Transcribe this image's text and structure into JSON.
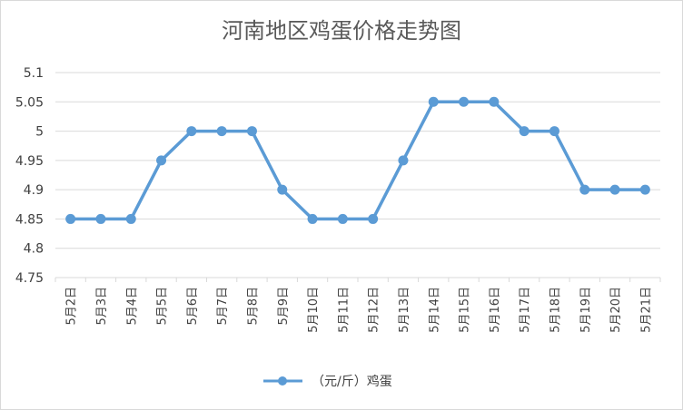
{
  "chart_data": {
    "type": "line",
    "title": "河南地区鸡蛋价格走势图",
    "xlabel": "",
    "ylabel": "",
    "categories": [
      "5月2日",
      "5月3日",
      "5月4日",
      "5月5日",
      "5月6日",
      "5月7日",
      "5月8日",
      "5月9日",
      "5月10日",
      "5月11日",
      "5月12日",
      "5月13日",
      "5月14日",
      "5月15日",
      "5月16日",
      "5月17日",
      "5月18日",
      "5月19日",
      "5月20日",
      "5月21日"
    ],
    "series": [
      {
        "name": "（元/斤）鸡蛋",
        "color": "#5b9bd5",
        "values": [
          4.85,
          4.85,
          4.85,
          4.95,
          5,
          5,
          5,
          4.9,
          4.85,
          4.85,
          4.85,
          4.95,
          5.05,
          5.05,
          5.05,
          5,
          5,
          4.9,
          4.9,
          4.9
        ]
      }
    ],
    "ylim": [
      4.75,
      5.1
    ],
    "yticks": [
      "4.75",
      "4.8",
      "4.85",
      "4.9",
      "4.95",
      "5",
      "5.05",
      "5.1"
    ],
    "grid": true,
    "legend_position": "bottom"
  }
}
